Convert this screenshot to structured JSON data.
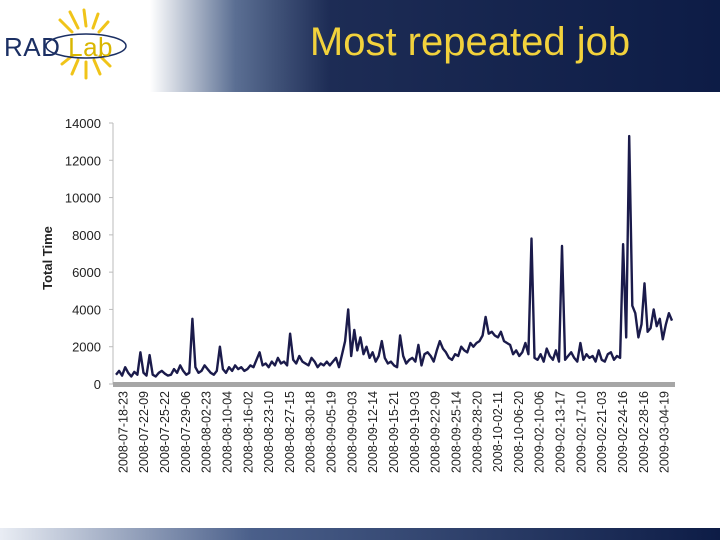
{
  "header": {
    "title": "Most repeated job",
    "logo_text_main": "RAD",
    "logo_text_accent": "Lab"
  },
  "colors": {
    "header_dark": "#0d1c46",
    "title_yellow": "#f2d23c",
    "series": "#1b1b4b",
    "axis": "#999999"
  },
  "chart_data": {
    "type": "line",
    "title": "Most repeated job",
    "xlabel": "",
    "ylabel": "Total Time",
    "ylim": [
      0,
      14000
    ],
    "yticks": [
      0,
      2000,
      4000,
      6000,
      8000,
      10000,
      12000,
      14000
    ],
    "grid": false,
    "legend": "none",
    "x_tick_labels": [
      "2008-07-18-23",
      "2008-07-22-09",
      "2008-07-25-22",
      "2008-07-29-06",
      "2008-08-02-23",
      "2008-08-10-04",
      "2008-08-16-02",
      "2008-08-23-10",
      "2008-08-27-15",
      "2008-08-30-18",
      "2008-09-05-19",
      "2008-09-09-03",
      "2008-09-12-14",
      "2008-09-15-21",
      "2008-09-19-03",
      "2008-09-22-09",
      "2008-09-25-14",
      "2008-09-28-20",
      "2008-10-02-11",
      "2008-10-06-20",
      "2009-02-10-06",
      "2009-02-13-17",
      "2009-02-17-10",
      "2009-02-21-03",
      "2009-02-24-16",
      "2009-02-28-16",
      "2009-03-04-19"
    ],
    "series": [
      {
        "values": [
          500,
          700,
          450,
          900,
          600,
          400,
          650,
          500,
          1700,
          600,
          450,
          1550,
          500,
          400,
          600,
          700,
          550,
          450,
          500,
          800,
          600,
          1000,
          700,
          500,
          600,
          3500,
          900,
          600,
          700,
          1000,
          800,
          600,
          500,
          700,
          2000,
          800,
          600,
          900,
          700,
          1000,
          800,
          900,
          700,
          800,
          1000,
          900,
          1300,
          1700,
          1000,
          1100,
          900,
          1200,
          1000,
          1400,
          1100,
          1200,
          1000,
          2700,
          1300,
          1100,
          1500,
          1200,
          1100,
          1000,
          1400,
          1200,
          900,
          1100,
          1000,
          1200,
          1000,
          1200,
          1400,
          900,
          1600,
          2300,
          4000,
          1500,
          2900,
          1800,
          2500,
          1600,
          2000,
          1400,
          1700,
          1200,
          1500,
          2300,
          1400,
          1100,
          1200,
          1000,
          900,
          2600,
          1500,
          1100,
          1300,
          1400,
          1200,
          2100,
          1000,
          1600,
          1700,
          1500,
          1200,
          1800,
          2300,
          1900,
          1700,
          1400,
          1300,
          1600,
          1500,
          2000,
          1800,
          1700,
          2200,
          2000,
          2200,
          2300,
          2600,
          3600,
          2700,
          2800,
          2600,
          2500,
          2800,
          2300,
          2200,
          2100,
          1600,
          1800,
          1500,
          1700,
          2200,
          1600,
          7800,
          1400,
          1300,
          1600,
          1200,
          1900,
          1500,
          1300,
          1800,
          1200,
          7400,
          1300,
          1500,
          1700,
          1400,
          1200,
          2200,
          1300,
          1600,
          1400,
          1500,
          1200,
          1800,
          1300,
          1200,
          1600,
          1700,
          1300,
          1500,
          1400,
          7500,
          2500,
          13300,
          4200,
          3800,
          2500,
          3200,
          5400,
          2800,
          3000,
          4000,
          3100,
          3500,
          2400,
          3200,
          3800,
          3400
        ]
      }
    ]
  }
}
